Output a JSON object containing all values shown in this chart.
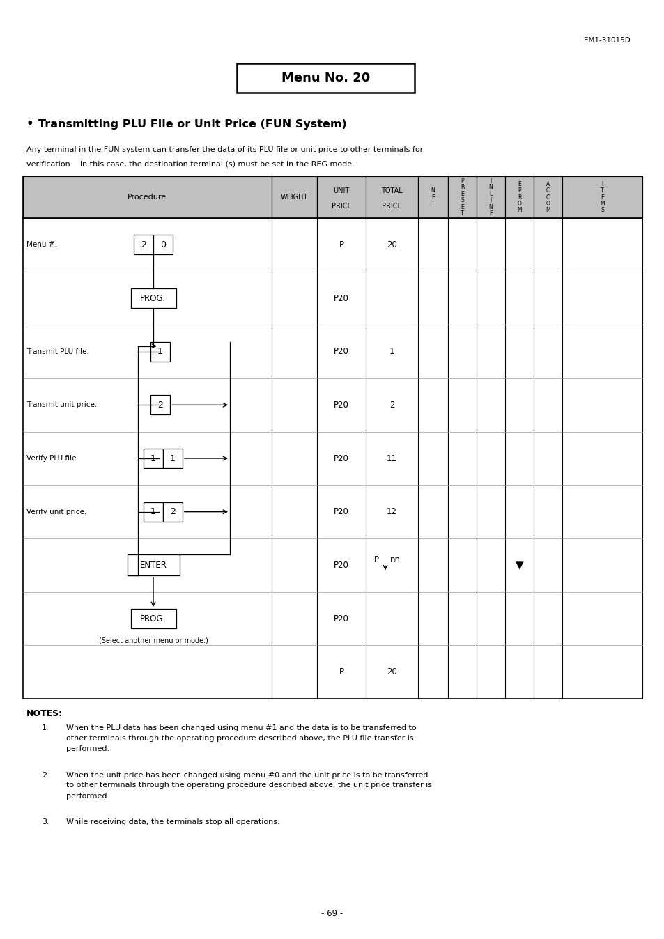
{
  "page_id": "EM1-31015D",
  "menu_no": "Menu No. 20",
  "section_title": "Transmitting PLU File or Unit Price (FUN System)",
  "intro_line1": "Any terminal in the FUN system can transfer the data of its PLU file or unit price to other terminals for",
  "intro_line2": "verification.   In this case, the destination terminal (s) must be set in the REG mode.",
  "notes_title": "NOTES:",
  "notes": [
    "When the PLU data has been changed using menu #1 and the data is to be transferred to other terminals through the operating procedure described above, the PLU file transfer is performed.",
    "When the unit price has been changed using menu #0 and the unit price is to be transferred to other terminals through the operating procedure described above, the unit price transfer is performed.",
    "While receiving data, the terminals stop all operations."
  ],
  "page_number": "- 69 -",
  "bg_color": "#ffffff"
}
